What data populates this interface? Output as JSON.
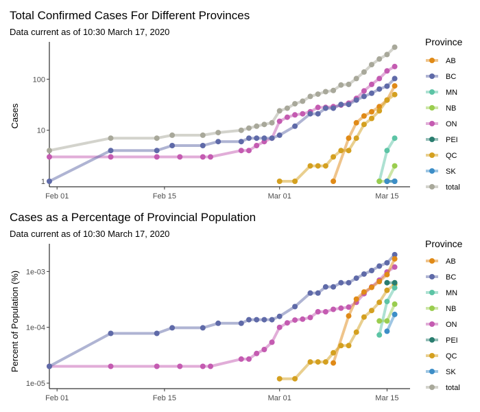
{
  "chart_data": [
    {
      "type": "line",
      "title": "Total Confirmed Cases For Different Provinces",
      "subtitle": "Data current as of 10:30 March 17, 2020",
      "ylabel": "Cases",
      "xlabel": "",
      "y_scale": "log",
      "ylim": [
        1,
        420
      ],
      "y_ticks": [
        1,
        10,
        100
      ],
      "y_tick_labels": [
        "1",
        "10",
        "100"
      ],
      "x_ticks": [
        "2020-02-01",
        "2020-02-15",
        "2020-03-01",
        "2020-03-15"
      ],
      "x_tick_labels": [
        "Feb 01",
        "Feb 15",
        "Mar 01",
        "Mar 15"
      ],
      "xlim": [
        "2020-01-31",
        "2020-03-18"
      ],
      "legend_title": "Province",
      "legend_position": "right",
      "grid": false,
      "series": [
        {
          "name": "total",
          "color": "#a8a89a",
          "points": [
            [
              "2020-01-31",
              4
            ],
            [
              "2020-02-08",
              7
            ],
            [
              "2020-02-14",
              7
            ],
            [
              "2020-02-16",
              8
            ],
            [
              "2020-02-20",
              8
            ],
            [
              "2020-02-22",
              9
            ],
            [
              "2020-02-25",
              10
            ],
            [
              "2020-02-26",
              11
            ],
            [
              "2020-02-27",
              12
            ],
            [
              "2020-02-28",
              13
            ],
            [
              "2020-02-29",
              14
            ],
            [
              "2020-03-01",
              24
            ],
            [
              "2020-03-02",
              27
            ],
            [
              "2020-03-03",
              33
            ],
            [
              "2020-03-04",
              37
            ],
            [
              "2020-03-05",
              46
            ],
            [
              "2020-03-06",
              51
            ],
            [
              "2020-03-07",
              57
            ],
            [
              "2020-03-08",
              60
            ],
            [
              "2020-03-09",
              77
            ],
            [
              "2020-03-10",
              79
            ],
            [
              "2020-03-11",
              103
            ],
            [
              "2020-03-12",
              138
            ],
            [
              "2020-03-13",
              193
            ],
            [
              "2020-03-14",
              249
            ],
            [
              "2020-03-15",
              304
            ],
            [
              "2020-03-16",
              424
            ]
          ]
        },
        {
          "name": "ON",
          "color": "#c45bb1",
          "points": [
            [
              "2020-01-31",
              3
            ],
            [
              "2020-02-08",
              3
            ],
            [
              "2020-02-14",
              3
            ],
            [
              "2020-02-17",
              3
            ],
            [
              "2020-02-20",
              3
            ],
            [
              "2020-02-21",
              3
            ],
            [
              "2020-02-25",
              4
            ],
            [
              "2020-02-26",
              4
            ],
            [
              "2020-02-27",
              5
            ],
            [
              "2020-02-28",
              6
            ],
            [
              "2020-02-29",
              7
            ],
            [
              "2020-03-01",
              15
            ],
            [
              "2020-03-02",
              18
            ],
            [
              "2020-03-03",
              20
            ],
            [
              "2020-03-04",
              21
            ],
            [
              "2020-03-05",
              23
            ],
            [
              "2020-03-06",
              28
            ],
            [
              "2020-03-07",
              28
            ],
            [
              "2020-03-08",
              29
            ],
            [
              "2020-03-09",
              31
            ],
            [
              "2020-03-10",
              34
            ],
            [
              "2020-03-11",
              42
            ],
            [
              "2020-03-12",
              59
            ],
            [
              "2020-03-13",
              79
            ],
            [
              "2020-03-14",
              103
            ],
            [
              "2020-03-15",
              145
            ],
            [
              "2020-03-16",
              177
            ]
          ]
        },
        {
          "name": "BC",
          "color": "#5f6aa8",
          "points": [
            [
              "2020-01-31",
              1
            ],
            [
              "2020-02-08",
              4
            ],
            [
              "2020-02-14",
              4
            ],
            [
              "2020-02-16",
              5
            ],
            [
              "2020-02-20",
              5
            ],
            [
              "2020-02-22",
              6
            ],
            [
              "2020-02-25",
              6
            ],
            [
              "2020-02-26",
              7
            ],
            [
              "2020-02-27",
              7
            ],
            [
              "2020-02-28",
              7
            ],
            [
              "2020-02-29",
              7
            ],
            [
              "2020-03-01",
              8
            ],
            [
              "2020-03-03",
              12
            ],
            [
              "2020-03-05",
              21
            ],
            [
              "2020-03-06",
              21
            ],
            [
              "2020-03-07",
              27
            ],
            [
              "2020-03-08",
              27
            ],
            [
              "2020-03-09",
              32
            ],
            [
              "2020-03-10",
              32
            ],
            [
              "2020-03-11",
              39
            ],
            [
              "2020-03-12",
              46
            ],
            [
              "2020-03-13",
              53
            ],
            [
              "2020-03-14",
              64
            ],
            [
              "2020-03-15",
              73
            ],
            [
              "2020-03-16",
              103
            ]
          ]
        },
        {
          "name": "AB",
          "color": "#e08a17",
          "points": [
            [
              "2020-03-08",
              1
            ],
            [
              "2020-03-10",
              7
            ],
            [
              "2020-03-11",
              14
            ],
            [
              "2020-03-12",
              19
            ],
            [
              "2020-03-13",
              23
            ],
            [
              "2020-03-14",
              29
            ],
            [
              "2020-03-15",
              39
            ],
            [
              "2020-03-16",
              74
            ]
          ]
        },
        {
          "name": "QC",
          "color": "#d4a020",
          "points": [
            [
              "2020-03-01",
              1
            ],
            [
              "2020-03-03",
              1
            ],
            [
              "2020-03-05",
              2
            ],
            [
              "2020-03-06",
              2
            ],
            [
              "2020-03-07",
              2
            ],
            [
              "2020-03-08",
              3
            ],
            [
              "2020-03-09",
              4
            ],
            [
              "2020-03-10",
              4
            ],
            [
              "2020-03-11",
              7
            ],
            [
              "2020-03-12",
              13
            ],
            [
              "2020-03-13",
              17
            ],
            [
              "2020-03-14",
              24
            ],
            [
              "2020-03-15",
              39
            ],
            [
              "2020-03-16",
              50
            ]
          ]
        },
        {
          "name": "MN",
          "color": "#5cc4a5",
          "points": [
            [
              "2020-03-14",
              1
            ],
            [
              "2020-03-15",
              4
            ],
            [
              "2020-03-16",
              7
            ]
          ]
        },
        {
          "name": "NB",
          "color": "#9acd4f",
          "points": [
            [
              "2020-03-14",
              1
            ],
            [
              "2020-03-15",
              1
            ],
            [
              "2020-03-16",
              2
            ]
          ]
        },
        {
          "name": "PEI",
          "color": "#2a7d6f",
          "points": [
            [
              "2020-03-15",
              1
            ],
            [
              "2020-03-16",
              1
            ]
          ]
        },
        {
          "name": "SK",
          "color": "#3d8ec7",
          "points": [
            [
              "2020-03-15",
              1
            ],
            [
              "2020-03-16",
              1
            ]
          ]
        }
      ]
    },
    {
      "type": "line",
      "title": "Cases as a Percentage of Provincial Population",
      "subtitle": "Data current as of 10:30 March 17, 2020",
      "ylabel": "Percent of Population (%)",
      "xlabel": "",
      "y_scale": "log",
      "ylim": [
        1e-05,
        0.0025
      ],
      "y_ticks": [
        1e-05,
        0.0001,
        0.001
      ],
      "y_tick_labels": [
        "1e-05",
        "1e-04",
        "1e-03"
      ],
      "x_ticks": [
        "2020-02-01",
        "2020-02-15",
        "2020-03-01",
        "2020-03-15"
      ],
      "x_tick_labels": [
        "Feb 01",
        "Feb 15",
        "Mar 01",
        "Mar 15"
      ],
      "xlim": [
        "2020-01-31",
        "2020-03-18"
      ],
      "legend_title": "Province",
      "legend_position": "right",
      "grid": false,
      "series": [
        {
          "name": "ON",
          "color": "#c45bb1",
          "points": [
            [
              "2020-01-31",
              2e-05
            ],
            [
              "2020-02-08",
              2e-05
            ],
            [
              "2020-02-14",
              2e-05
            ],
            [
              "2020-02-17",
              2e-05
            ],
            [
              "2020-02-20",
              2e-05
            ],
            [
              "2020-02-21",
              2e-05
            ],
            [
              "2020-02-25",
              2.7e-05
            ],
            [
              "2020-02-26",
              2.7e-05
            ],
            [
              "2020-02-27",
              3.4e-05
            ],
            [
              "2020-02-28",
              4e-05
            ],
            [
              "2020-02-29",
              5.4e-05
            ],
            [
              "2020-03-01",
              0.0001
            ],
            [
              "2020-03-02",
              0.00012
            ],
            [
              "2020-03-03",
              0.000135
            ],
            [
              "2020-03-04",
              0.00014
            ],
            [
              "2020-03-05",
              0.00015
            ],
            [
              "2020-03-06",
              0.00019
            ],
            [
              "2020-03-07",
              0.00019
            ],
            [
              "2020-03-08",
              0.00021
            ],
            [
              "2020-03-09",
              0.00022
            ],
            [
              "2020-03-10",
              0.00023
            ],
            [
              "2020-03-11",
              0.00028
            ],
            [
              "2020-03-12",
              0.0004
            ],
            [
              "2020-03-13",
              0.00053
            ],
            [
              "2020-03-14",
              0.0007
            ],
            [
              "2020-03-15",
              0.00098
            ],
            [
              "2020-03-16",
              0.0012
            ]
          ]
        },
        {
          "name": "BC",
          "color": "#5f6aa8",
          "points": [
            [
              "2020-01-31",
              2e-05
            ],
            [
              "2020-02-08",
              7.8e-05
            ],
            [
              "2020-02-14",
              7.8e-05
            ],
            [
              "2020-02-16",
              9.8e-05
            ],
            [
              "2020-02-20",
              9.8e-05
            ],
            [
              "2020-02-22",
              0.000118
            ],
            [
              "2020-02-25",
              0.000118
            ],
            [
              "2020-02-26",
              0.000137
            ],
            [
              "2020-02-27",
              0.000137
            ],
            [
              "2020-02-28",
              0.000137
            ],
            [
              "2020-02-29",
              0.000137
            ],
            [
              "2020-03-01",
              0.000157
            ],
            [
              "2020-03-03",
              0.000235
            ],
            [
              "2020-03-05",
              0.00041
            ],
            [
              "2020-03-06",
              0.00041
            ],
            [
              "2020-03-07",
              0.00053
            ],
            [
              "2020-03-08",
              0.00053
            ],
            [
              "2020-03-09",
              0.00063
            ],
            [
              "2020-03-10",
              0.00063
            ],
            [
              "2020-03-11",
              0.00076
            ],
            [
              "2020-03-12",
              0.0009
            ],
            [
              "2020-03-13",
              0.00104
            ],
            [
              "2020-03-14",
              0.00125
            ],
            [
              "2020-03-15",
              0.00143
            ],
            [
              "2020-03-16",
              0.002
            ]
          ]
        },
        {
          "name": "AB",
          "color": "#e08a17",
          "points": [
            [
              "2020-03-08",
              2.3e-05
            ],
            [
              "2020-03-10",
              0.00016
            ],
            [
              "2020-03-11",
              0.00032
            ],
            [
              "2020-03-12",
              0.00043
            ],
            [
              "2020-03-13",
              0.00052
            ],
            [
              "2020-03-14",
              0.00066
            ],
            [
              "2020-03-15",
              0.00088
            ],
            [
              "2020-03-16",
              0.00168
            ]
          ]
        },
        {
          "name": "QC",
          "color": "#d4a020",
          "points": [
            [
              "2020-03-01",
              1.2e-05
            ],
            [
              "2020-03-03",
              1.2e-05
            ],
            [
              "2020-03-05",
              2.4e-05
            ],
            [
              "2020-03-06",
              2.4e-05
            ],
            [
              "2020-03-07",
              2.4e-05
            ],
            [
              "2020-03-08",
              3.5e-05
            ],
            [
              "2020-03-09",
              4.7e-05
            ],
            [
              "2020-03-10",
              4.7e-05
            ],
            [
              "2020-03-11",
              8.2e-05
            ],
            [
              "2020-03-12",
              0.000153
            ],
            [
              "2020-03-13",
              0.0002
            ],
            [
              "2020-03-14",
              0.00028
            ],
            [
              "2020-03-15",
              0.00046
            ],
            [
              "2020-03-16",
              0.00059
            ]
          ]
        },
        {
          "name": "MN",
          "color": "#5cc4a5",
          "points": [
            [
              "2020-03-14",
              7.3e-05
            ],
            [
              "2020-03-15",
              0.00029
            ],
            [
              "2020-03-16",
              0.00051
            ]
          ]
        },
        {
          "name": "NB",
          "color": "#9acd4f",
          "points": [
            [
              "2020-03-14",
              0.00013
            ],
            [
              "2020-03-15",
              0.00013
            ],
            [
              "2020-03-16",
              0.00026
            ]
          ]
        },
        {
          "name": "PEI",
          "color": "#2a7d6f",
          "points": [
            [
              "2020-03-15",
              0.00063
            ],
            [
              "2020-03-16",
              0.00063
            ]
          ]
        },
        {
          "name": "SK",
          "color": "#3d8ec7",
          "points": [
            [
              "2020-03-15",
              8.5e-05
            ],
            [
              "2020-03-16",
              0.00017
            ]
          ]
        }
      ]
    }
  ],
  "legend": {
    "title": "Province",
    "entries": [
      {
        "name": "AB",
        "color": "#e08a17"
      },
      {
        "name": "BC",
        "color": "#5f6aa8"
      },
      {
        "name": "MN",
        "color": "#5cc4a5"
      },
      {
        "name": "NB",
        "color": "#9acd4f"
      },
      {
        "name": "ON",
        "color": "#c45bb1"
      },
      {
        "name": "PEI",
        "color": "#2a7d6f"
      },
      {
        "name": "QC",
        "color": "#d4a020"
      },
      {
        "name": "SK",
        "color": "#3d8ec7"
      },
      {
        "name": "total",
        "color": "#a8a89a"
      }
    ]
  },
  "legend_bottom": {
    "title": "Province",
    "entries": [
      {
        "name": "AB",
        "color": "#e08a17"
      },
      {
        "name": "BC",
        "color": "#5f6aa8"
      },
      {
        "name": "MN",
        "color": "#5cc4a5"
      },
      {
        "name": "NB",
        "color": "#9acd4f"
      },
      {
        "name": "ON",
        "color": "#c45bb1"
      },
      {
        "name": "PEI",
        "color": "#2a7d6f"
      },
      {
        "name": "QC",
        "color": "#d4a020"
      },
      {
        "name": "SK",
        "color": "#3d8ec7"
      },
      {
        "name": "total",
        "color": "#a8a89a"
      }
    ]
  }
}
